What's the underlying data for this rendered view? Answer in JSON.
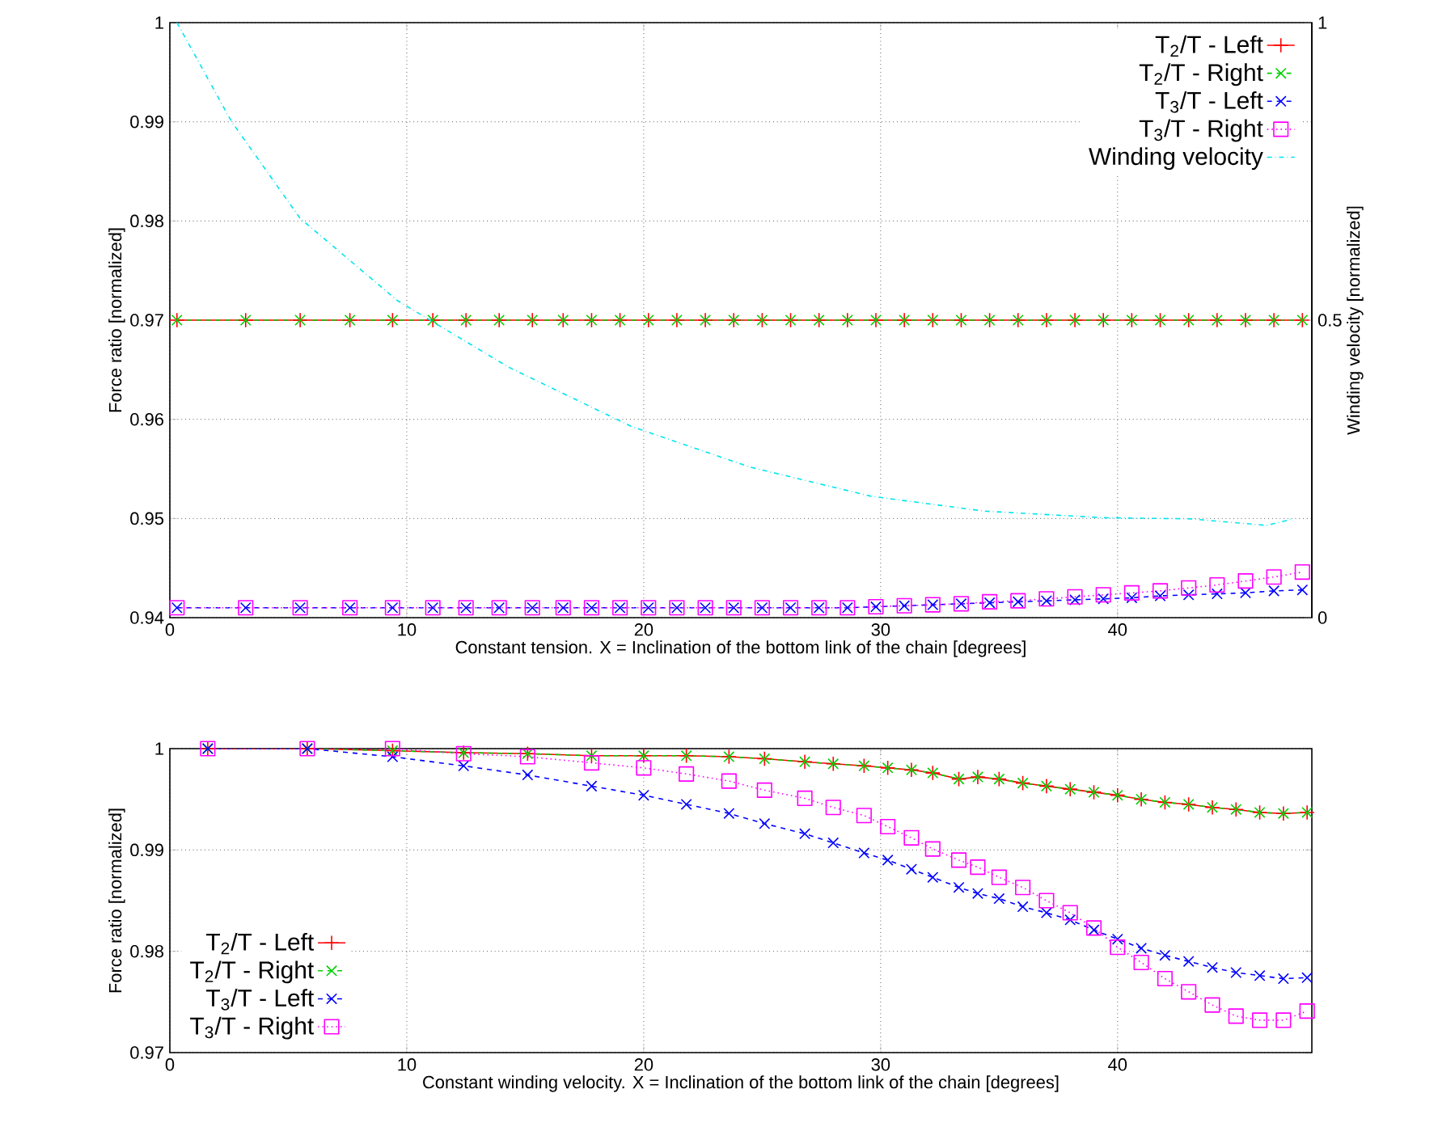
{
  "chart_data": [
    {
      "type": "line",
      "xlabel": "Constant tension. X = Inclination of the bottom link of the chain [degrees]",
      "ylabel": "Force ratio [normalized]",
      "y2label": "Winding velocity [normalized]",
      "xlim": [
        0,
        48.2
      ],
      "xticks": [
        0,
        10,
        20,
        30,
        40
      ],
      "ylim": [
        0.94,
        1
      ],
      "yticks": [
        0.94,
        0.95,
        0.96,
        0.97,
        0.98,
        0.99,
        1
      ],
      "y2lim": [
        0,
        1
      ],
      "y2ticks": [
        0,
        0.5,
        1
      ],
      "grid": true,
      "legend": "top right",
      "series": [
        {
          "name": "T$_{2}$/T - Left",
          "color": "#ff0000",
          "marker": "plus",
          "line_style": "solid",
          "x": [
            0.3,
            3.2,
            5.5,
            7.6,
            9.4,
            11.1,
            12.5,
            13.9,
            15.3,
            16.6,
            17.8,
            19,
            20.2,
            21.4,
            22.6,
            23.8,
            25,
            26.2,
            27.4,
            28.6,
            29.8,
            31,
            32.2,
            33.4,
            34.6,
            35.8,
            37,
            38.2,
            39.4,
            40.6,
            41.8,
            43,
            44.2,
            45.4,
            46.6,
            47.8
          ],
          "values": [
            0.97,
            0.97,
            0.97,
            0.97,
            0.97,
            0.97,
            0.97,
            0.97,
            0.97,
            0.97,
            0.97,
            0.97,
            0.97,
            0.97,
            0.97,
            0.97,
            0.97,
            0.97,
            0.97,
            0.97,
            0.97,
            0.97,
            0.97,
            0.97,
            0.97,
            0.97,
            0.97,
            0.97,
            0.97,
            0.97,
            0.97,
            0.97,
            0.97,
            0.97,
            0.97,
            0.97
          ]
        },
        {
          "name": "T$_{2}$/T - Right",
          "color": "#00d000",
          "marker": "cross",
          "line_style": "dashed",
          "x": [
            0.3,
            3.2,
            5.5,
            7.6,
            9.4,
            11.1,
            12.5,
            13.9,
            15.3,
            16.6,
            17.8,
            19,
            20.2,
            21.4,
            22.6,
            23.8,
            25,
            26.2,
            27.4,
            28.6,
            29.8,
            31,
            32.2,
            33.4,
            34.6,
            35.8,
            37,
            38.2,
            39.4,
            40.6,
            41.8,
            43,
            44.2,
            45.4,
            46.6,
            47.8
          ],
          "values": [
            0.97,
            0.97,
            0.97,
            0.97,
            0.97,
            0.97,
            0.97,
            0.97,
            0.97,
            0.97,
            0.97,
            0.97,
            0.97,
            0.97,
            0.97,
            0.97,
            0.97,
            0.97,
            0.97,
            0.97,
            0.97,
            0.97,
            0.97,
            0.97,
            0.97,
            0.97,
            0.97,
            0.97,
            0.97,
            0.97,
            0.97,
            0.97,
            0.97,
            0.97,
            0.97,
            0.97
          ]
        },
        {
          "name": "T$_{3}$/T - Left",
          "color": "#0000ff",
          "marker": "cross",
          "line_style": "dashed",
          "x": [
            0.3,
            3.2,
            5.5,
            7.6,
            9.4,
            11.1,
            12.5,
            13.9,
            15.3,
            16.6,
            17.8,
            19,
            20.2,
            21.4,
            22.6,
            23.8,
            25,
            26.2,
            27.4,
            28.6,
            29.8,
            31,
            32.2,
            33.4,
            34.6,
            35.8,
            37,
            38.2,
            39.4,
            40.6,
            41.8,
            43,
            44.2,
            45.4,
            46.6,
            47.8
          ],
          "values": [
            0.941,
            0.941,
            0.941,
            0.941,
            0.941,
            0.941,
            0.941,
            0.941,
            0.941,
            0.941,
            0.941,
            0.941,
            0.941,
            0.941,
            0.941,
            0.941,
            0.941,
            0.941,
            0.941,
            0.941,
            0.9411,
            0.9412,
            0.9413,
            0.9414,
            0.9415,
            0.9416,
            0.9417,
            0.9418,
            0.9419,
            0.942,
            0.9422,
            0.9423,
            0.9424,
            0.9425,
            0.9427,
            0.9428
          ]
        },
        {
          "name": "T$_{3}$/T - Right",
          "color": "#ff00ff",
          "marker": "square",
          "line_style": "dotted",
          "x": [
            0.3,
            3.2,
            5.5,
            7.6,
            9.4,
            11.1,
            12.5,
            13.9,
            15.3,
            16.6,
            17.8,
            19,
            20.2,
            21.4,
            22.6,
            23.8,
            25,
            26.2,
            27.4,
            28.6,
            29.8,
            31,
            32.2,
            33.4,
            34.6,
            35.8,
            37,
            38.2,
            39.4,
            40.6,
            41.8,
            43,
            44.2,
            45.4,
            46.6,
            47.8
          ],
          "values": [
            0.941,
            0.941,
            0.941,
            0.941,
            0.941,
            0.941,
            0.941,
            0.941,
            0.941,
            0.941,
            0.941,
            0.941,
            0.941,
            0.941,
            0.941,
            0.941,
            0.941,
            0.941,
            0.941,
            0.941,
            0.9411,
            0.9412,
            0.9413,
            0.9414,
            0.9416,
            0.9417,
            0.9419,
            0.9421,
            0.9423,
            0.9425,
            0.9427,
            0.943,
            0.9433,
            0.9437,
            0.9441,
            0.9446
          ]
        },
        {
          "name": "Winding velocity",
          "color": "#00e5ee",
          "marker": "none",
          "line_style": "dashdot",
          "axis": "y2",
          "x": [
            0.3,
            2.6,
            5.5,
            9.6,
            14.3,
            19.5,
            24.5,
            29.6,
            34.4,
            39.4,
            43.1,
            46.3,
            47.4
          ],
          "values": [
            1,
            0.834,
            0.671,
            0.533,
            0.421,
            0.321,
            0.253,
            0.204,
            0.179,
            0.168,
            0.166,
            0.155,
            0.166
          ]
        }
      ]
    },
    {
      "type": "line",
      "xlabel": "Constant winding velocity. X = Inclination of the bottom link of the chain [degrees]",
      "ylabel": "Force ratio [normalized]",
      "xlim": [
        0,
        48.2
      ],
      "xticks": [
        0,
        10,
        20,
        30,
        40
      ],
      "ylim": [
        0.97,
        1
      ],
      "yticks": [
        0.97,
        0.98,
        0.99,
        1
      ],
      "grid": true,
      "legend": "bottom left",
      "series": [
        {
          "name": "T$_{2}$/T - Left",
          "color": "#ff0000",
          "marker": "plus",
          "line_style": "solid",
          "x": [
            1.6,
            5.8,
            9.4,
            12.4,
            15.1,
            17.8,
            20,
            21.8,
            23.6,
            25.1,
            26.8,
            28,
            29.3,
            30.3,
            31.3,
            32.2,
            33.3,
            34.1,
            35,
            36,
            37,
            38,
            39,
            40,
            41,
            42,
            43,
            44,
            45,
            46,
            47,
            48
          ],
          "values": [
            1,
            1,
            0.9998,
            0.9996,
            0.9995,
            0.9993,
            0.9993,
            0.9993,
            0.9992,
            0.999,
            0.9987,
            0.9985,
            0.9983,
            0.9981,
            0.9979,
            0.9976,
            0.997,
            0.9972,
            0.997,
            0.9966,
            0.9963,
            0.996,
            0.9957,
            0.9954,
            0.995,
            0.9947,
            0.9945,
            0.9942,
            0.994,
            0.9937,
            0.9936,
            0.9937
          ]
        },
        {
          "name": "T$_{2}$/T - Right",
          "color": "#00d000",
          "marker": "cross",
          "line_style": "dashed",
          "x": [
            1.6,
            5.8,
            9.4,
            12.4,
            15.1,
            17.8,
            20,
            21.8,
            23.6,
            25.1,
            26.8,
            28,
            29.3,
            30.3,
            31.3,
            32.2,
            33.3,
            34.1,
            35,
            36,
            37,
            38,
            39,
            40,
            41,
            42,
            43,
            44,
            45,
            46,
            47,
            48
          ],
          "values": [
            1,
            1,
            0.9998,
            0.9996,
            0.9995,
            0.9993,
            0.9993,
            0.9993,
            0.9992,
            0.999,
            0.9987,
            0.9985,
            0.9983,
            0.9981,
            0.9979,
            0.9976,
            0.997,
            0.9972,
            0.997,
            0.9966,
            0.9963,
            0.996,
            0.9957,
            0.9954,
            0.995,
            0.9947,
            0.9945,
            0.9942,
            0.994,
            0.9937,
            0.9936,
            0.9937
          ]
        },
        {
          "name": "T$_{3}$/T - Left",
          "color": "#0000ff",
          "marker": "cross",
          "line_style": "dashed",
          "x": [
            1.6,
            5.8,
            9.4,
            12.4,
            15.1,
            17.8,
            20,
            21.8,
            23.6,
            25.1,
            26.8,
            28,
            29.3,
            30.3,
            31.3,
            32.2,
            33.3,
            34.1,
            35,
            36,
            37,
            38,
            39,
            40,
            41,
            42,
            43,
            44,
            45,
            46,
            47,
            48
          ],
          "values": [
            1,
            1,
            0.9992,
            0.9983,
            0.9974,
            0.9963,
            0.9954,
            0.9945,
            0.9936,
            0.9926,
            0.9916,
            0.9907,
            0.9897,
            0.989,
            0.9881,
            0.9873,
            0.9863,
            0.9857,
            0.9852,
            0.9844,
            0.9838,
            0.9831,
            0.9821,
            0.9812,
            0.9803,
            0.9796,
            0.979,
            0.9784,
            0.9779,
            0.9776,
            0.9773,
            0.9774
          ]
        },
        {
          "name": "T$_{3}$/T - Right",
          "color": "#ff00ff",
          "marker": "square",
          "line_style": "dotted",
          "x": [
            1.6,
            5.8,
            9.4,
            12.4,
            15.1,
            17.8,
            20,
            21.8,
            23.6,
            25.1,
            26.8,
            28,
            29.3,
            30.3,
            31.3,
            32.2,
            33.3,
            34.1,
            35,
            36,
            37,
            38,
            39,
            40,
            41,
            42,
            43,
            44,
            45,
            46,
            47,
            48
          ],
          "values": [
            1,
            1,
            1,
            0.9995,
            0.9992,
            0.9986,
            0.9981,
            0.9975,
            0.9968,
            0.9959,
            0.9951,
            0.9942,
            0.9934,
            0.9923,
            0.9912,
            0.9901,
            0.989,
            0.9883,
            0.9873,
            0.9863,
            0.985,
            0.9838,
            0.9823,
            0.9804,
            0.9789,
            0.9773,
            0.976,
            0.9747,
            0.9736,
            0.9732,
            0.9732,
            0.9741
          ]
        }
      ]
    }
  ]
}
